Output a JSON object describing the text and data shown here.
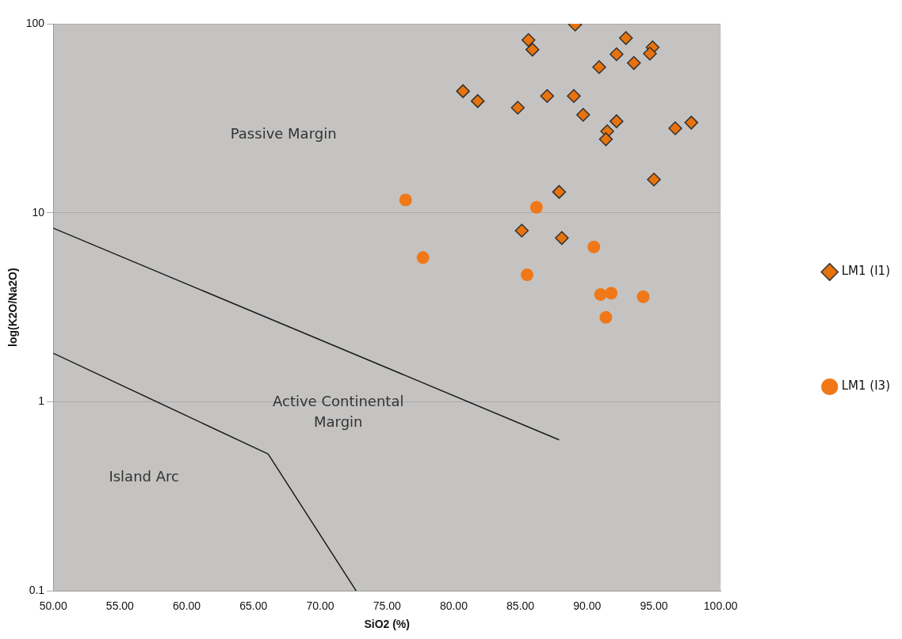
{
  "chart_data": {
    "type": "scatter",
    "xlabel": "SiO2 (%)",
    "ylabel": "log(K2O/Na2O)",
    "xlim": [
      50,
      100
    ],
    "xticks": [
      {
        "value": 50,
        "label": "50.00"
      },
      {
        "value": 55,
        "label": "55.00"
      },
      {
        "value": 60,
        "label": "60.00"
      },
      {
        "value": 65,
        "label": "65.00"
      },
      {
        "value": 70,
        "label": "70.00"
      },
      {
        "value": 75,
        "label": "75.00"
      },
      {
        "value": 80,
        "label": "80.00"
      },
      {
        "value": 85,
        "label": "85.00"
      },
      {
        "value": 90,
        "label": "90.00"
      },
      {
        "value": 95,
        "label": "95.00"
      },
      {
        "value": 100,
        "label": "100.00"
      }
    ],
    "ylim": [
      0.1,
      100
    ],
    "yticks": [
      0.1,
      1,
      10,
      100
    ],
    "log": "y",
    "grid": "y",
    "legend": "right",
    "series": [
      {
        "name": "LM1 (I1)",
        "color": "#e8720c",
        "marker": "diamond",
        "x": [
          80.7,
          81.8,
          84.8,
          85.6,
          85.9,
          87.0,
          89.1,
          89.0,
          89.7,
          90.9,
          92.2,
          92.2,
          91.5,
          91.4,
          92.9,
          93.5,
          94.9,
          94.7,
          96.6,
          97.8,
          95.0,
          87.9,
          85.1,
          88.1
        ],
        "values": [
          44,
          39,
          36,
          82,
          73,
          41.5,
          99,
          41.5,
          33,
          59,
          69,
          30.5,
          27,
          24.5,
          84,
          62,
          75,
          69.5,
          28,
          30,
          15,
          12.9,
          8.05,
          7.36
        ]
      },
      {
        "name": "LM1 (I3)",
        "color": "#f07818",
        "marker": "circle",
        "x": [
          76.4,
          86.2,
          77.7,
          85.5,
          90.5,
          91.0,
          91.8,
          94.2,
          91.4
        ],
        "values": [
          11.7,
          10.7,
          5.8,
          4.7,
          6.6,
          3.7,
          3.76,
          3.6,
          2.8
        ]
      },
      {
        "type": "line",
        "color": "#1a1a1a",
        "marker": "none",
        "x": [
          50,
          87.9
        ],
        "values": [
          8.3,
          0.63
        ]
      },
      {
        "type": "line",
        "color": "#1a1a1a",
        "marker": "none",
        "x": [
          50,
          66.1,
          72.7
        ],
        "values": [
          1.81,
          0.53,
          0.1
        ]
      }
    ],
    "annotations": [
      "Passive Margin",
      "Active Continental\nMargin",
      "Island Arc"
    ]
  }
}
